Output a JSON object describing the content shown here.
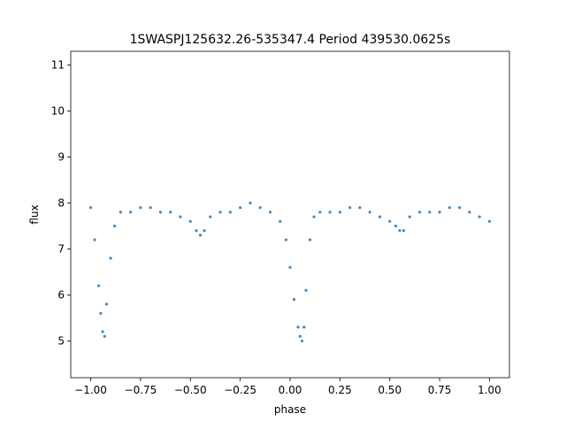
{
  "chart_data": {
    "type": "scatter",
    "title": "1SWASPJ125632.26-535347.4 Period 439530.0625s",
    "xlabel": "phase",
    "ylabel": "flux",
    "xlim": [
      -1.1,
      1.1
    ],
    "ylim": [
      4.2,
      11.3
    ],
    "grid": false,
    "legend": "none",
    "x_ticks": [
      -1.0,
      -0.75,
      -0.5,
      -0.25,
      0.0,
      0.25,
      0.5,
      0.75,
      1.0
    ],
    "x_tick_labels": [
      "−1.00",
      "−0.75",
      "−0.50",
      "−0.25",
      "0.00",
      "0.25",
      "0.50",
      "0.75",
      "1.00"
    ],
    "y_ticks": [
      5,
      6,
      7,
      8,
      9,
      10,
      11
    ],
    "y_tick_labels": [
      "5",
      "6",
      "7",
      "8",
      "9",
      "10",
      "11"
    ],
    "series": [
      {
        "color": "#1f77b4",
        "marker": "point",
        "x": [
          -1.0,
          -0.98,
          -0.96,
          -0.95,
          -0.94,
          -0.93,
          -0.92,
          -0.9,
          -0.88,
          -0.85,
          -0.8,
          -0.75,
          -0.7,
          -0.65,
          -0.6,
          -0.55,
          -0.5,
          -0.47,
          -0.45,
          -0.43,
          -0.4,
          -0.35,
          -0.3,
          -0.25,
          -0.2,
          -0.15,
          -0.1,
          -0.05,
          -0.02,
          0.0,
          0.02,
          0.04,
          0.05,
          0.06,
          0.07,
          0.08,
          0.1,
          0.12,
          0.15,
          0.2,
          0.25,
          0.3,
          0.35,
          0.4,
          0.45,
          0.5,
          0.53,
          0.55,
          0.57,
          0.6,
          0.65,
          0.7,
          0.75,
          0.8,
          0.85,
          0.9,
          0.95,
          1.0
        ],
        "y": [
          7.9,
          7.2,
          6.2,
          5.6,
          5.2,
          5.1,
          5.8,
          6.8,
          7.5,
          7.8,
          7.8,
          7.9,
          7.9,
          7.8,
          7.8,
          7.7,
          7.6,
          7.4,
          7.3,
          7.4,
          7.7,
          7.8,
          7.8,
          7.9,
          8.0,
          7.9,
          7.8,
          7.6,
          7.2,
          6.6,
          5.9,
          5.3,
          5.1,
          5.0,
          5.3,
          6.1,
          7.2,
          7.7,
          7.8,
          7.8,
          7.8,
          7.9,
          7.9,
          7.8,
          7.7,
          7.6,
          7.5,
          7.4,
          7.4,
          7.7,
          7.8,
          7.8,
          7.8,
          7.9,
          7.9,
          7.8,
          7.7,
          7.6
        ]
      }
    ]
  }
}
